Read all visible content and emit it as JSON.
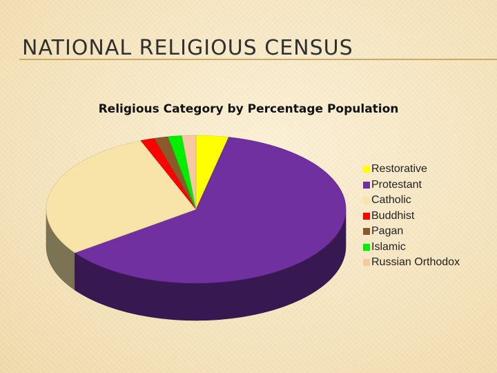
{
  "slide": {
    "title": "NATIONAL RELIGIOUS CENSUS"
  },
  "chart_data": {
    "type": "pie",
    "title": "Religious Category by Percentage Population",
    "legend_position": "right",
    "categories": [
      "Restorative",
      "Protestant",
      "Catholic",
      "Buddhist",
      "Pagan",
      "Islamic",
      "Russian Orthodox"
    ],
    "values": [
      3.5,
      61.5,
      29,
      1.5,
      1.5,
      1.5,
      1.5
    ],
    "colors": [
      "#ffff00",
      "#7030a0",
      "#f8e3a8",
      "#ff0000",
      "#8b5a2b",
      "#00ee00",
      "#f6c9a0"
    ]
  }
}
